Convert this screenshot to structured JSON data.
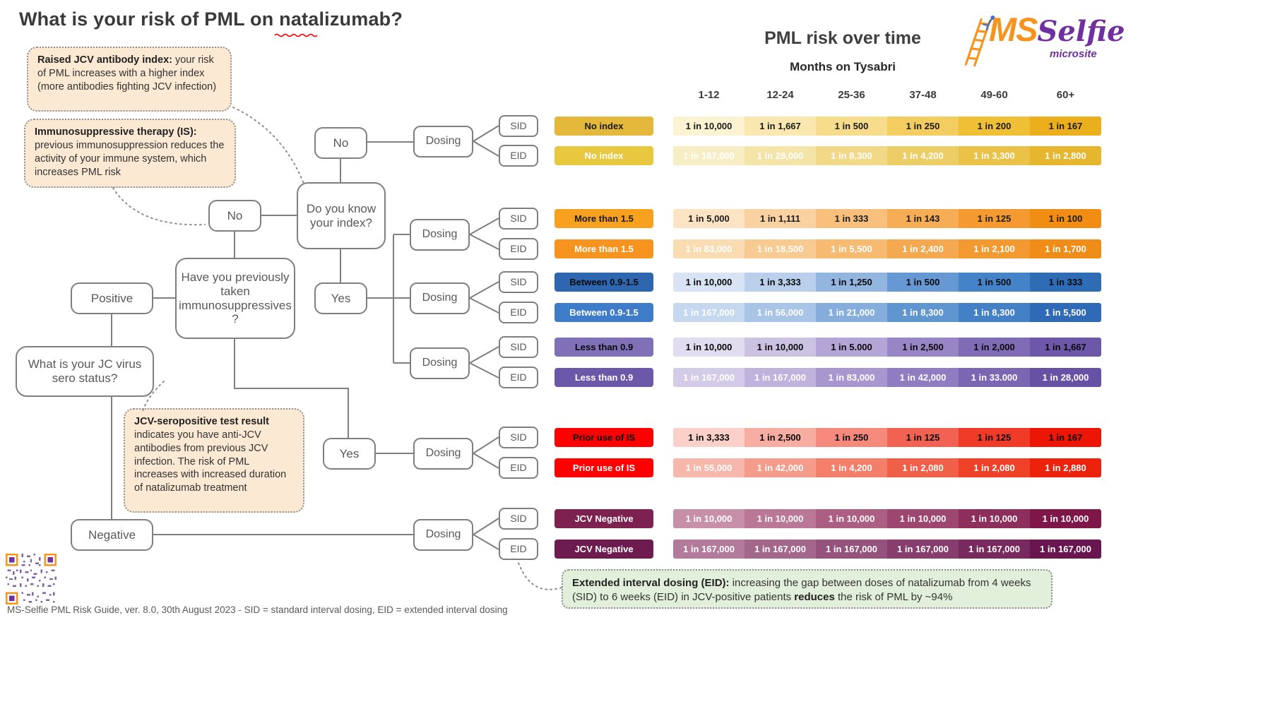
{
  "title": "What is your risk of PML on natalizumab?",
  "logo": {
    "ms": "MS",
    "selfie": "Selfie",
    "microsite": "microsite"
  },
  "callouts": {
    "raised_index": {
      "lead": "Raised JCV antibody index:",
      "body": " your risk of PML increases with a higher index (more antibodies fighting JCV infection)"
    },
    "immunosuppression": {
      "lead": "Immunosuppressive therapy (IS):",
      "body": " previous immunosuppression reduces the activity of your immune system, which increases PML risk"
    },
    "seropositive": {
      "lead": "JCV-seropositive test result",
      "body": " indicates you have anti-JCV antibodies from previous JCV infection. The risk of PML increases with increased duration of natalizumab treatment"
    },
    "eid": {
      "lead": "Extended interval dosing (EID):",
      "body": " increasing the gap between doses of natalizumab from 4 weeks (SID) to 6 weeks (EID)  in JCV-positive patients ",
      "emphasis": "reduces",
      "body2": " the risk of PML by ~94%"
    }
  },
  "flowchart": {
    "sero_question": "What is your JC virus sero status?",
    "positive": "Positive",
    "negative": "Negative",
    "immuno_question": "Have you previously taken immunosuppressives?",
    "index_question": "Do you know your index?",
    "no": "No",
    "yes": "Yes",
    "dosing": "Dosing",
    "sid": "SID",
    "eid": "EID"
  },
  "table": {
    "title": "PML risk over time",
    "subtitle": "Months on Tysabri",
    "columns": [
      "1-12",
      "12-24",
      "25-36",
      "37-48",
      "49-60",
      "60+"
    ],
    "rows": [
      {
        "label": "No index",
        "dosing": "SID",
        "label_bg": "#E3B83B",
        "label_color": "#1a1a1a",
        "text_color": "#1a1a1a",
        "cells": [
          "#FCF3D2",
          "#FAE8B0",
          "#F7DC8B",
          "#F3CD5F",
          "#EFBF36",
          "#EBAE1C"
        ],
        "values": [
          "1 in 10,000",
          "1 in 1,667",
          "1 in 500",
          "1 in 250",
          "1 in 200",
          "1 in 167"
        ]
      },
      {
        "label": "No index",
        "dosing": "EID",
        "label_bg": "#E8C83E",
        "label_color": "#ffffff",
        "text_color": "#ffffff",
        "cells": [
          "#F8EEC6",
          "#F4E4A8",
          "#F1D988",
          "#EDCD65",
          "#E9C247",
          "#E5B62E"
        ],
        "values": [
          "1 in 167,000",
          "1 in 28,000",
          "1 in 8,300",
          "1 in 4,200",
          "1 in 3,300",
          "1 in 2,800"
        ]
      },
      {
        "label": "More than 1.5",
        "dosing": "SID",
        "label_bg": "#F7A11F",
        "label_color": "#1a1a1a",
        "text_color": "#1a1a1a",
        "cells": [
          "#FCE3C3",
          "#FAD2A1",
          "#F8C07C",
          "#F6AD55",
          "#F49A30",
          "#F28D14"
        ],
        "values": [
          "1 in 5,000",
          "1 in 1,111",
          "1 in 333",
          "1 in 143",
          "1 in 125",
          "1 in 100"
        ]
      },
      {
        "label": "More than 1.5",
        "dosing": "EID",
        "label_bg": "#F79420",
        "label_color": "#ffffff",
        "text_color": "#ffffff",
        "cells": [
          "#FADCB2",
          "#F8CB92",
          "#F6BA71",
          "#F4A950",
          "#F29930",
          "#F08D18"
        ],
        "values": [
          "1 in 83,000",
          "1 in 18,500",
          "1 in 5,500",
          "1 in 2,400",
          "1 in 2,100",
          "1 in 1,700"
        ]
      },
      {
        "label": "Between 0.9-1.5",
        "dosing": "SID",
        "label_bg": "#2F66B0",
        "label_color": "#0a0a0a",
        "text_color": "#0a0a0a",
        "cells": [
          "#D8E4F4",
          "#B9CFEC",
          "#92B6E0",
          "#6699D3",
          "#4483C8",
          "#2F6CB6"
        ],
        "values": [
          "1 in 10,000",
          "1 in 3,333",
          "1 in 1,250",
          "1 in 500",
          "1 in 500",
          "1 in 333"
        ]
      },
      {
        "label": "Between 0.9-1.5",
        "dosing": "EID",
        "label_bg": "#3E7CC9",
        "label_color": "#ffffff",
        "text_color": "#ffffff",
        "cells": [
          "#C6D8F0",
          "#A8C5E8",
          "#85AEDC",
          "#6096D0",
          "#4380C5",
          "#2E6AB5"
        ],
        "values": [
          "1 in 167,000",
          "1 in 56,000",
          "1 in 21,000",
          "1 in 8,300",
          "1 in 8,300",
          "1 in 5,500"
        ]
      },
      {
        "label": "Less than 0.9",
        "dosing": "SID",
        "label_bg": "#8070B8",
        "label_color": "#0a0a0a",
        "text_color": "#0a0a0a",
        "cells": [
          "#E1DCEF",
          "#CCC3E3",
          "#B3A5D5",
          "#9885C5",
          "#806BB6",
          "#6C57A8"
        ],
        "values": [
          "1 in 10,000",
          "1 in 10,000",
          "1 in 5.000",
          "1 in 2,500",
          "1 in 2,000",
          "1 in 1,667"
        ]
      },
      {
        "label": "Less than 0.9",
        "dosing": "EID",
        "label_bg": "#6C58A9",
        "label_color": "#ffffff",
        "text_color": "#ffffff",
        "cells": [
          "#D4CBE8",
          "#BFB2DC",
          "#A897CE",
          "#907CC0",
          "#7A66B2",
          "#6651A4"
        ],
        "values": [
          "1 in 167,000",
          "1 in 167,000",
          "1 in 83,000",
          "1 in 42,000",
          "1 in 33.000",
          "1 in 28,000"
        ]
      },
      {
        "label": "Prior use of IS",
        "dosing": "SID",
        "label_bg": "#FF0000",
        "label_color": "#0a0a0a",
        "text_color": "#0a0a0a",
        "cells": [
          "#FBD0C9",
          "#F8ADA2",
          "#F5897B",
          "#F26252",
          "#F03B28",
          "#ED1505"
        ],
        "values": [
          "1 in 3,333",
          "1 in 2,500",
          "1 in 250",
          "1 in 125",
          "1 in 125",
          "1 in 167"
        ]
      },
      {
        "label": "Prior use of IS",
        "dosing": "EID",
        "label_bg": "#FF0000",
        "label_color": "#ffffff",
        "text_color": "#ffffff",
        "cells": [
          "#F8B7AB",
          "#F59B8C",
          "#F37E6A",
          "#F05F48",
          "#EE4128",
          "#EC220C"
        ],
        "values": [
          "1 in 55,000",
          "1 in 42,000",
          "1 in 4,200",
          "1 in 2,080",
          "1 in 2,080",
          "1 in 2,880"
        ]
      },
      {
        "label": "JCV Negative",
        "dosing": "SID",
        "label_bg": "#7C2150",
        "label_color": "#ffffff",
        "text_color": "#ffffff",
        "cells": [
          "#C78FA8",
          "#BB7796",
          "#AC5F83",
          "#9D4670",
          "#8E2E5D",
          "#7E164A"
        ],
        "values": [
          "1 in 10,000",
          "1 in 10,000",
          "1 in 10,000",
          "1 in 10,000",
          "1 in 10,000",
          "1 in 10,000"
        ]
      },
      {
        "label": "JCV Negative",
        "dosing": "EID",
        "label_bg": "#6E1B50",
        "label_color": "#ffffff",
        "text_color": "#ffffff",
        "cells": [
          "#B27A9B",
          "#A4678C",
          "#95527D",
          "#873E6E",
          "#782A5F",
          "#691650"
        ],
        "values": [
          "1 in 167,000",
          "1 in 167,000",
          "1 in 167,000",
          "1 in 167,000",
          "1 in 167,000",
          "1 in 167,000"
        ]
      }
    ]
  },
  "footer": "MS-Selfie PML Risk Guide, ver. 8.0, 30th August 2023 - SID = standard interval dosing, EID = extended interval dosing",
  "colors": {
    "accent_orange": "#F7941D",
    "accent_purple": "#7030A0",
    "squiggle_red": "#FF0000"
  }
}
